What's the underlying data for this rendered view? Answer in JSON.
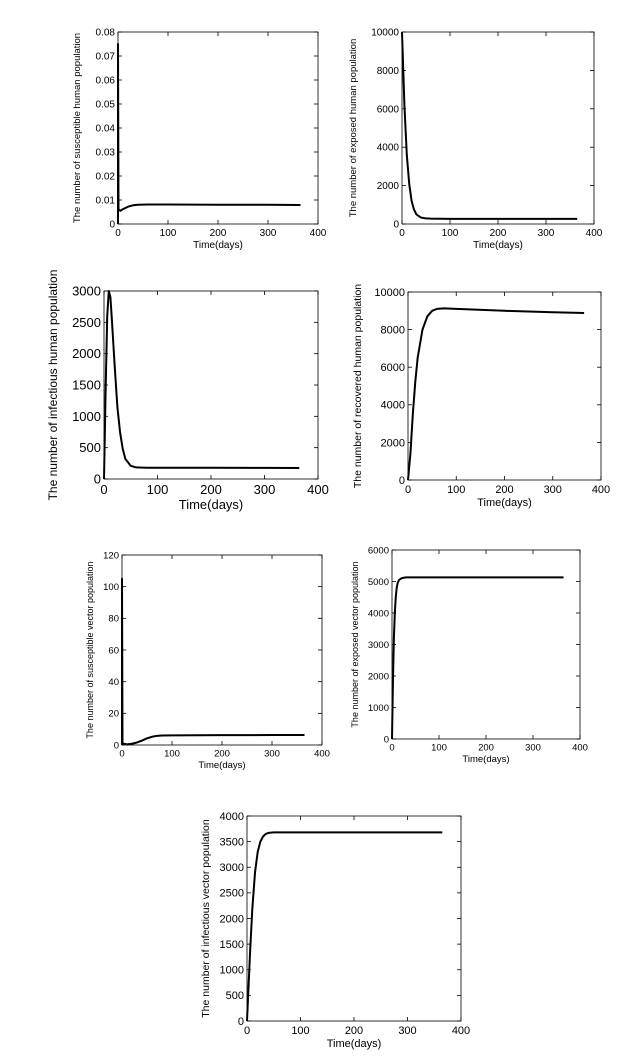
{
  "chart_data": [
    {
      "type": "line",
      "xlabel": "Time(days)",
      "ylabel": "The number of susceptible human population",
      "xlim": [
        0,
        400
      ],
      "ylim": [
        0,
        0.08
      ],
      "xticks": [
        "0",
        "100",
        "200",
        "300",
        "400"
      ],
      "yticks": [
        "0",
        "0.01",
        "0.02",
        "0.03",
        "0.04",
        "0.05",
        "0.06",
        "0.07",
        "0.08"
      ],
      "grid": false,
      "legend": "none",
      "series": [
        {
          "x": [
            0,
            0,
            1,
            5,
            10,
            20,
            30,
            40,
            60,
            100,
            200,
            300,
            365
          ],
          "y": [
            0.0,
            0.075,
            0.006,
            0.0055,
            0.0062,
            0.0072,
            0.0078,
            0.008,
            0.0081,
            0.0081,
            0.008,
            0.008,
            0.0079
          ]
        }
      ]
    },
    {
      "type": "line",
      "xlabel": "Time(days)",
      "ylabel": "The number of exposed human population",
      "xlim": [
        0,
        400
      ],
      "ylim": [
        0,
        10000
      ],
      "xticks": [
        "0",
        "100",
        "200",
        "300",
        "400"
      ],
      "yticks": [
        "0",
        "2000",
        "4000",
        "6000",
        "8000",
        "10000"
      ],
      "grid": false,
      "legend": "none",
      "series": [
        {
          "x": [
            0,
            5,
            10,
            15,
            20,
            25,
            30,
            40,
            50,
            60,
            100,
            200,
            300,
            365
          ],
          "y": [
            10000,
            6200,
            3600,
            2100,
            1200,
            750,
            500,
            330,
            290,
            280,
            270,
            270,
            270,
            270
          ]
        }
      ]
    },
    {
      "type": "line",
      "xlabel": "Time(days)",
      "ylabel": "The number of infectious human population",
      "xlim": [
        0,
        400
      ],
      "ylim": [
        0,
        3000
      ],
      "xticks": [
        "0",
        "100",
        "200",
        "300",
        "400"
      ],
      "yticks": [
        "0",
        "500",
        "1000",
        "1500",
        "2000",
        "2500",
        "3000"
      ],
      "grid": false,
      "legend": "none",
      "series": [
        {
          "x": [
            0,
            3,
            6,
            9,
            12,
            15,
            20,
            25,
            30,
            35,
            40,
            50,
            60,
            80,
            100,
            200,
            300,
            365
          ],
          "y": [
            0,
            1400,
            2600,
            3000,
            2900,
            2500,
            1800,
            1150,
            750,
            480,
            320,
            210,
            185,
            180,
            180,
            180,
            178,
            175
          ]
        }
      ]
    },
    {
      "type": "line",
      "xlabel": "Time(days)",
      "ylabel": "The number of recovered human population",
      "xlim": [
        0,
        400
      ],
      "ylim": [
        0,
        10000
      ],
      "xticks": [
        "0",
        "100",
        "200",
        "300",
        "400"
      ],
      "yticks": [
        "0",
        "2000",
        "4000",
        "6000",
        "8000",
        "10000"
      ],
      "grid": false,
      "legend": "none",
      "series": [
        {
          "x": [
            0,
            5,
            10,
            15,
            20,
            30,
            40,
            50,
            60,
            75,
            100,
            200,
            300,
            365
          ],
          "y": [
            0,
            1400,
            3500,
            5200,
            6500,
            8000,
            8700,
            9000,
            9100,
            9130,
            9100,
            9000,
            8920,
            8880
          ]
        }
      ]
    },
    {
      "type": "line",
      "xlabel": "Time(days)",
      "ylabel": "The number of susceptible vector population",
      "xlim": [
        0,
        400
      ],
      "ylim": [
        0,
        120
      ],
      "xticks": [
        "0",
        "100",
        "200",
        "300",
        "400"
      ],
      "yticks": [
        "0",
        "20",
        "40",
        "60",
        "80",
        "100",
        "120"
      ],
      "grid": false,
      "legend": "none",
      "series": [
        {
          "x": [
            0,
            0,
            1,
            10,
            20,
            30,
            40,
            50,
            60,
            70,
            80,
            100,
            200,
            300,
            365
          ],
          "y": [
            0,
            105,
            1,
            0.4,
            0.8,
            1.6,
            2.8,
            4.2,
            5.2,
            5.8,
            6.0,
            6.1,
            6.2,
            6.3,
            6.3
          ]
        }
      ]
    },
    {
      "type": "line",
      "xlabel": "Time(days)",
      "ylabel": "The number of exposed vector population",
      "xlim": [
        0,
        400
      ],
      "ylim": [
        0,
        6000
      ],
      "xticks": [
        "0",
        "100",
        "200",
        "300",
        "400"
      ],
      "yticks": [
        "0",
        "1000",
        "2000",
        "3000",
        "4000",
        "5000",
        "6000"
      ],
      "grid": false,
      "legend": "none",
      "series": [
        {
          "x": [
            0,
            2,
            4,
            6,
            8,
            10,
            12,
            15,
            20,
            25,
            30,
            40,
            100,
            200,
            300,
            365
          ],
          "y": [
            0,
            1800,
            3200,
            4000,
            4500,
            4800,
            4950,
            5050,
            5100,
            5120,
            5130,
            5130,
            5130,
            5130,
            5130,
            5130
          ]
        }
      ]
    },
    {
      "type": "line",
      "xlabel": "Time(days)",
      "ylabel": "The number of infectious vector population",
      "xlim": [
        0,
        400
      ],
      "ylim": [
        0,
        4000
      ],
      "xticks": [
        "0",
        "100",
        "200",
        "300",
        "400"
      ],
      "yticks": [
        "0",
        "500",
        "1000",
        "1500",
        "2000",
        "2500",
        "3000",
        "3500",
        "4000"
      ],
      "grid": false,
      "legend": "none",
      "series": [
        {
          "x": [
            0,
            3,
            6,
            10,
            15,
            20,
            25,
            30,
            35,
            40,
            50,
            60,
            100,
            200,
            300,
            365
          ],
          "y": [
            0,
            700,
            1400,
            2200,
            2900,
            3300,
            3500,
            3600,
            3650,
            3670,
            3680,
            3680,
            3680,
            3680,
            3680,
            3680
          ]
        }
      ]
    }
  ]
}
